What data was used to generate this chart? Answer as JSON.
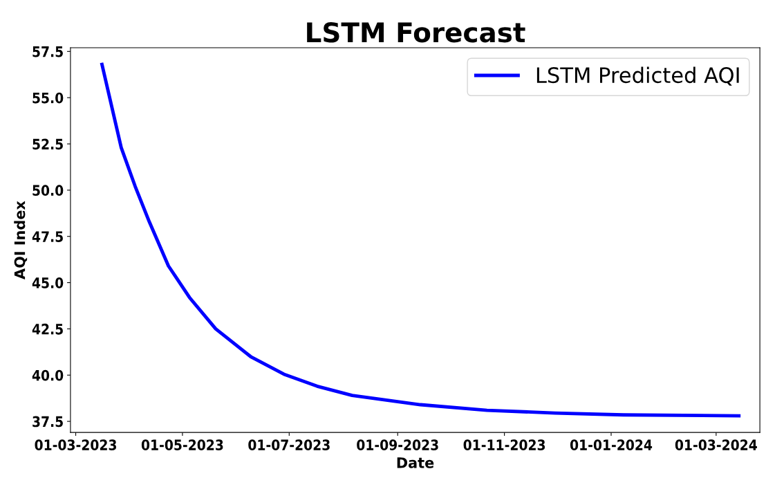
{
  "chart_data": {
    "type": "line",
    "title": "LSTM Forecast",
    "xlabel": "Date",
    "ylabel": "AQI Index",
    "x": [
      "2023-03-16",
      "2023-03-27",
      "2023-04-04",
      "2023-04-12",
      "2023-04-23",
      "2023-05-05",
      "2023-05-20",
      "2023-06-09",
      "2023-06-28",
      "2023-07-17",
      "2023-08-06",
      "2023-09-14",
      "2023-10-22",
      "2023-11-30",
      "2024-01-08",
      "2024-03-14"
    ],
    "series": [
      {
        "name": "LSTM Predicted AQI",
        "color": "#0000ff",
        "values": [
          56.8,
          52.3,
          50.2,
          48.3,
          45.9,
          44.2,
          42.5,
          41.0,
          40.05,
          39.4,
          38.9,
          38.4,
          38.1,
          37.95,
          37.85,
          37.8
        ]
      }
    ],
    "xlim": [
      "2023-02-26",
      "2024-03-26"
    ],
    "ylim": [
      36.9,
      57.7
    ],
    "xticks": [
      {
        "value": "2023-03-01",
        "label": "01-03-2023"
      },
      {
        "value": "2023-05-01",
        "label": "01-05-2023"
      },
      {
        "value": "2023-07-01",
        "label": "01-07-2023"
      },
      {
        "value": "2023-09-01",
        "label": "01-09-2023"
      },
      {
        "value": "2023-11-01",
        "label": "01-11-2023"
      },
      {
        "value": "2024-01-01",
        "label": "01-01-2024"
      },
      {
        "value": "2024-03-01",
        "label": "01-03-2024"
      }
    ],
    "yticks": [
      {
        "value": 37.5,
        "label": "37.5"
      },
      {
        "value": 40,
        "label": "40.0"
      },
      {
        "value": 42.5,
        "label": "42.5"
      },
      {
        "value": 45,
        "label": "45.0"
      },
      {
        "value": 47.5,
        "label": "47.5"
      },
      {
        "value": 50,
        "label": "50.0"
      },
      {
        "value": 52.5,
        "label": "52.5"
      },
      {
        "value": 55,
        "label": "55.0"
      },
      {
        "value": 57.5,
        "label": "57.5"
      }
    ],
    "grid": false,
    "legend": "top right"
  }
}
